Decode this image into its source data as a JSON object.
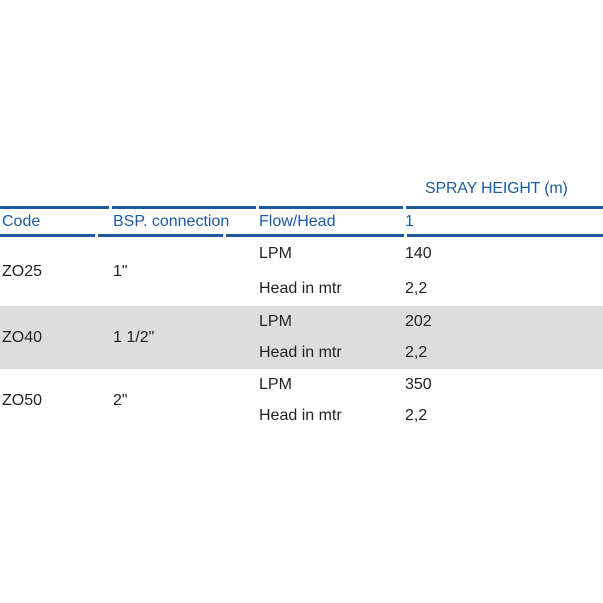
{
  "table": {
    "spray_height_label": "SPRAY HEIGHT (m)",
    "columns": {
      "code": "Code",
      "bsp_connection": "BSP. connection",
      "flow_head": "Flow/Head",
      "spray_height_1": "1"
    },
    "rows": [
      {
        "code": "ZO25",
        "bsp_connection": "1\"",
        "flow": [
          {
            "label": "LPM",
            "value": "140"
          },
          {
            "label": "Head in mtr",
            "value": "2,2"
          }
        ]
      },
      {
        "code": "ZO40",
        "bsp_connection": "1 1/2\"",
        "flow": [
          {
            "label": "LPM",
            "value": "202"
          },
          {
            "label": "Head in mtr",
            "value": "2,2"
          }
        ]
      },
      {
        "code": "ZO50",
        "bsp_connection": "2\"",
        "flow": [
          {
            "label": "LPM",
            "value": "350"
          },
          {
            "label": "Head in mtr",
            "value": "2,2"
          }
        ]
      }
    ],
    "colors": {
      "accent_blue": "#1e5b9c",
      "alt_row_gray": "#dedddd",
      "body_text": "#231f20",
      "background": "#ffffff"
    }
  }
}
